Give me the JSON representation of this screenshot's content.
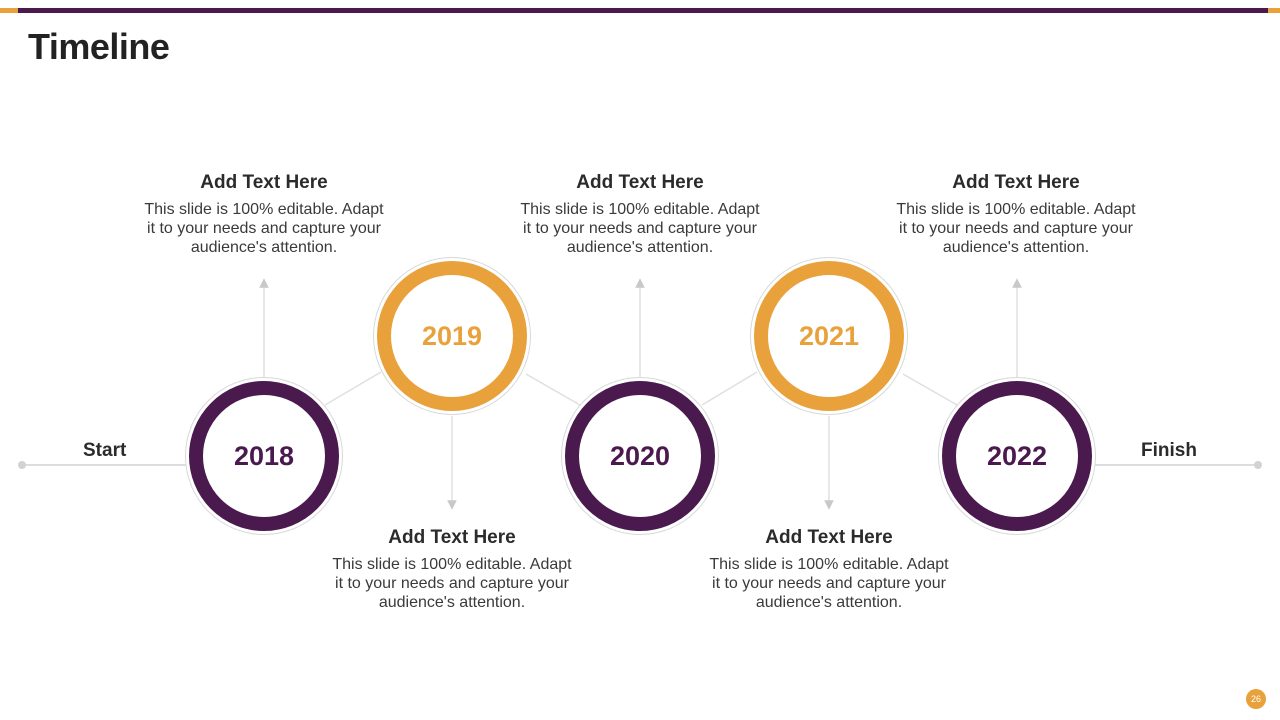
{
  "title": "Timeline",
  "start_label": "Start",
  "finish_label": "Finish",
  "page_number": "26",
  "colors": {
    "purple": "#4a1a4f",
    "orange": "#e9a23b"
  },
  "milestones": [
    {
      "year": "2018",
      "color": "purple",
      "heading": "Add Text Here",
      "body": "This slide is 100% editable. Adapt it to your needs and capture your audience's attention."
    },
    {
      "year": "2019",
      "color": "orange",
      "heading": "Add Text Here",
      "body": "This slide is 100% editable. Adapt it to your needs and capture your audience's attention."
    },
    {
      "year": "2020",
      "color": "purple",
      "heading": "Add Text Here",
      "body": "This slide is 100% editable. Adapt it to your needs and capture your audience's attention."
    },
    {
      "year": "2021",
      "color": "orange",
      "heading": "Add Text Here",
      "body": "This slide is 100% editable. Adapt it to your needs and capture your audience's attention."
    },
    {
      "year": "2022",
      "color": "purple",
      "heading": "Add Text Here",
      "body": "This slide is 100% editable. Adapt it to your needs and capture your audience's attention."
    }
  ]
}
